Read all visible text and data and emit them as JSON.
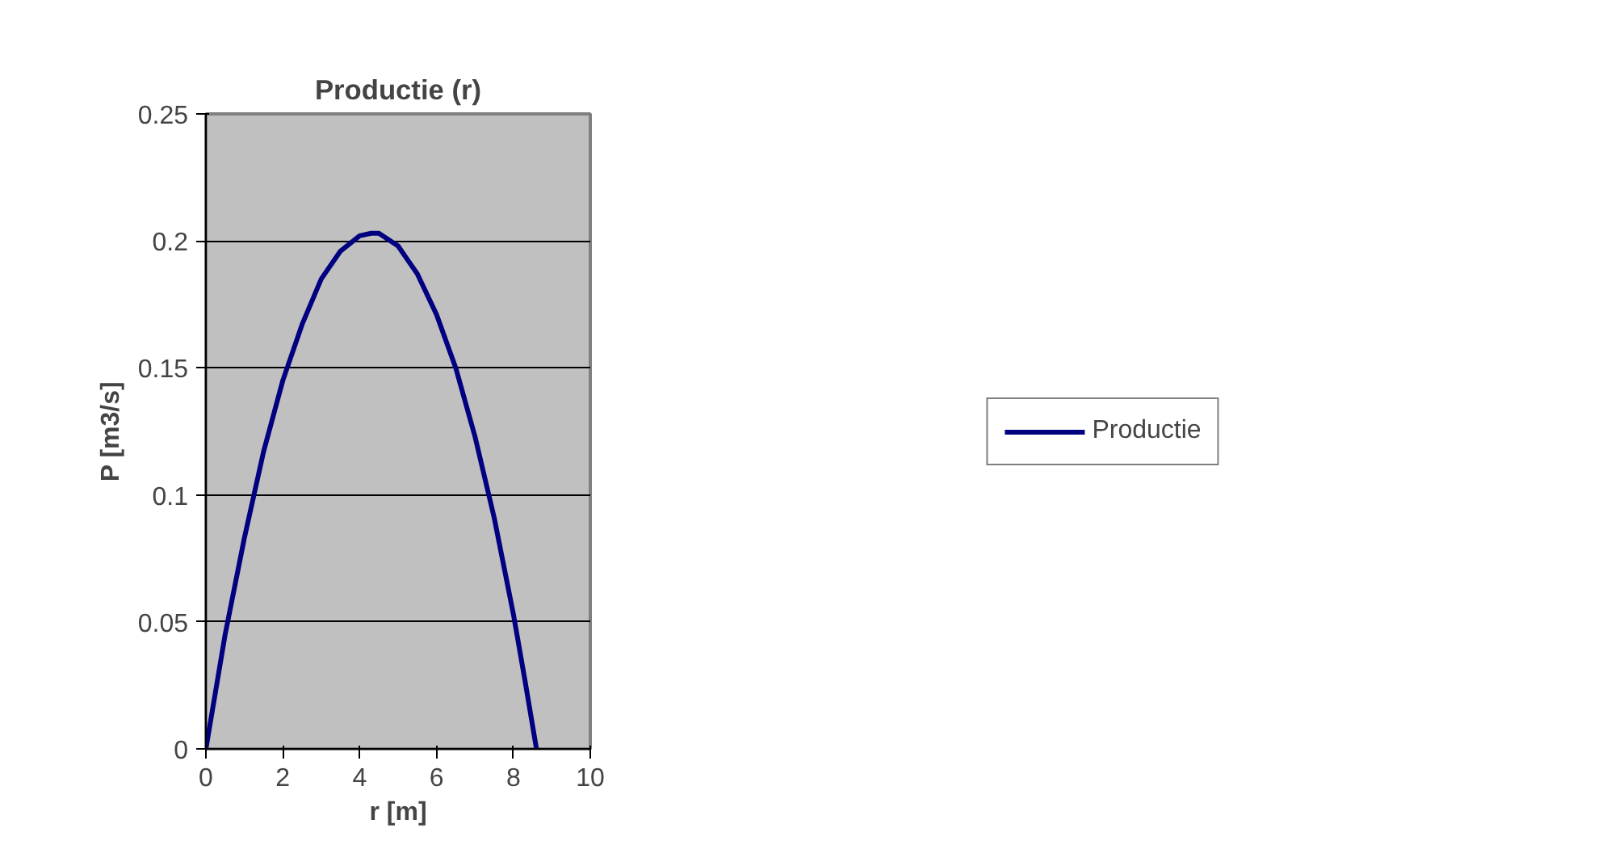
{
  "chart_data": {
    "type": "line",
    "title": "Productie (r)",
    "xlabel": "r [m]",
    "ylabel": "P [m3/s]",
    "x": [
      0,
      0.5,
      1,
      1.5,
      2,
      2.5,
      3,
      3.5,
      4,
      4.3,
      4.5,
      5,
      5.5,
      6,
      6.5,
      7,
      7.5,
      8,
      8.3,
      8.6
    ],
    "series": [
      {
        "name": "Productie",
        "color": "#000080",
        "values": [
          0,
          0.045,
          0.083,
          0.117,
          0.145,
          0.167,
          0.185,
          0.196,
          0.202,
          0.203,
          0.203,
          0.198,
          0.187,
          0.171,
          0.15,
          0.123,
          0.091,
          0.053,
          0.027,
          0
        ]
      }
    ],
    "xlim": [
      0,
      10
    ],
    "xticks": [
      0,
      2,
      4,
      6,
      8,
      10
    ],
    "ylim": [
      0,
      0.25
    ],
    "yticks": [
      0,
      0.05,
      0.1,
      0.15,
      0.2,
      0.25
    ],
    "grid": "y",
    "legend": "right",
    "marker": "none",
    "line_style": "solid"
  }
}
